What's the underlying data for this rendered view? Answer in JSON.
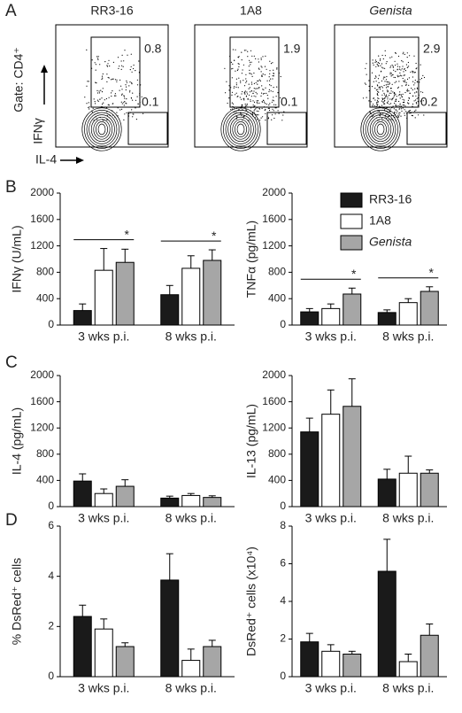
{
  "panel_labels": [
    "A",
    "B",
    "C",
    "D"
  ],
  "flow_plots": {
    "gate_label": "Gate: CD4⁺",
    "y_axis_label": "IFNγ",
    "x_axis_label": "IL-4",
    "plots": [
      {
        "title": "RR3-16",
        "upper_gate": 0.8,
        "lower_gate": 0.1
      },
      {
        "title": "1A8",
        "upper_gate": 1.9,
        "lower_gate": 0.1
      },
      {
        "title": "Genista",
        "italic": true,
        "upper_gate": 2.9,
        "lower_gate": 0.2
      }
    ]
  },
  "chart_data": [
    {
      "type": "bar",
      "y_label": "IFNγ (U/mL)",
      "categories": [
        "3 wks p.i.",
        "8 wks p.i."
      ],
      "ylim": [
        0,
        2000
      ],
      "yticks": [
        0,
        400,
        800,
        1200,
        1600,
        2000
      ],
      "series": [
        {
          "color": "#1a1a1a",
          "values": [
            220,
            460
          ],
          "errors": [
            100,
            140
          ]
        },
        {
          "color": "#ffffff",
          "values": [
            830,
            860
          ],
          "errors": [
            330,
            190
          ]
        },
        {
          "color": "#a6a6a6",
          "values": [
            950,
            980
          ],
          "errors": [
            200,
            160
          ]
        }
      ],
      "annotations": [
        "*",
        "*"
      ]
    },
    {
      "type": "bar",
      "y_label": "TNFα (pg/mL)",
      "categories": [
        "3 wks p.i.",
        "8 wks p.i."
      ],
      "ylim": [
        0,
        2000
      ],
      "yticks": [
        0,
        400,
        800,
        1200,
        1600,
        2000
      ],
      "legend": "upper right",
      "series": [
        {
          "name": "RR3-16",
          "color": "#1a1a1a",
          "values": [
            200,
            190
          ],
          "errors": [
            50,
            40
          ]
        },
        {
          "name": "1A8",
          "color": "#ffffff",
          "values": [
            250,
            340
          ],
          "errors": [
            70,
            60
          ]
        },
        {
          "name": "Genista",
          "italic": true,
          "color": "#a6a6a6",
          "values": [
            470,
            510
          ],
          "errors": [
            90,
            70
          ]
        }
      ],
      "annotations": [
        "*",
        "*"
      ]
    },
    {
      "type": "bar",
      "y_label": "IL-4 (pg/mL)",
      "categories": [
        "3 wks p.i.",
        "8 wks p.i."
      ],
      "ylim": [
        0,
        2000
      ],
      "yticks": [
        0,
        400,
        800,
        1200,
        1600,
        2000
      ],
      "series": [
        {
          "color": "#1a1a1a",
          "values": [
            390,
            130
          ],
          "errors": [
            110,
            30
          ]
        },
        {
          "color": "#ffffff",
          "values": [
            200,
            170
          ],
          "errors": [
            70,
            30
          ]
        },
        {
          "color": "#a6a6a6",
          "values": [
            310,
            140
          ],
          "errors": [
            100,
            25
          ]
        }
      ]
    },
    {
      "type": "bar",
      "y_label": "IL-13 (pg/mL)",
      "categories": [
        "3 wks p.i.",
        "8 wks p.i."
      ],
      "ylim": [
        0,
        2000
      ],
      "yticks": [
        0,
        400,
        800,
        1200,
        1600,
        2000
      ],
      "series": [
        {
          "color": "#1a1a1a",
          "values": [
            1140,
            420
          ],
          "errors": [
            210,
            150
          ]
        },
        {
          "color": "#ffffff",
          "values": [
            1410,
            510
          ],
          "errors": [
            370,
            260
          ]
        },
        {
          "color": "#a6a6a6",
          "values": [
            1530,
            510
          ],
          "errors": [
            420,
            50
          ]
        }
      ]
    },
    {
      "type": "bar",
      "y_label": "% DsRed⁺ cells",
      "categories": [
        "3 wks p.i.",
        "8 wks p.i."
      ],
      "ylim": [
        0,
        6
      ],
      "yticks": [
        0,
        2,
        4,
        6
      ],
      "series": [
        {
          "color": "#1a1a1a",
          "values": [
            2.4,
            3.85
          ],
          "errors": [
            0.45,
            1.05
          ]
        },
        {
          "color": "#ffffff",
          "values": [
            1.9,
            0.65
          ],
          "errors": [
            0.4,
            0.45
          ]
        },
        {
          "color": "#a6a6a6",
          "values": [
            1.2,
            1.2
          ],
          "errors": [
            0.15,
            0.25
          ]
        }
      ]
    },
    {
      "type": "bar",
      "y_label": "DsRed⁺ cells (x10⁴)",
      "categories": [
        "3 wks p.i.",
        "8 wks p.i."
      ],
      "ylim": [
        0,
        8
      ],
      "yticks": [
        0,
        2,
        4,
        6,
        8
      ],
      "series": [
        {
          "color": "#1a1a1a",
          "values": [
            1.85,
            5.6
          ],
          "errors": [
            0.45,
            1.7
          ]
        },
        {
          "color": "#ffffff",
          "values": [
            1.35,
            0.8
          ],
          "errors": [
            0.35,
            0.4
          ]
        },
        {
          "color": "#a6a6a6",
          "values": [
            1.2,
            2.2
          ],
          "errors": [
            0.15,
            0.6
          ]
        }
      ]
    }
  ]
}
